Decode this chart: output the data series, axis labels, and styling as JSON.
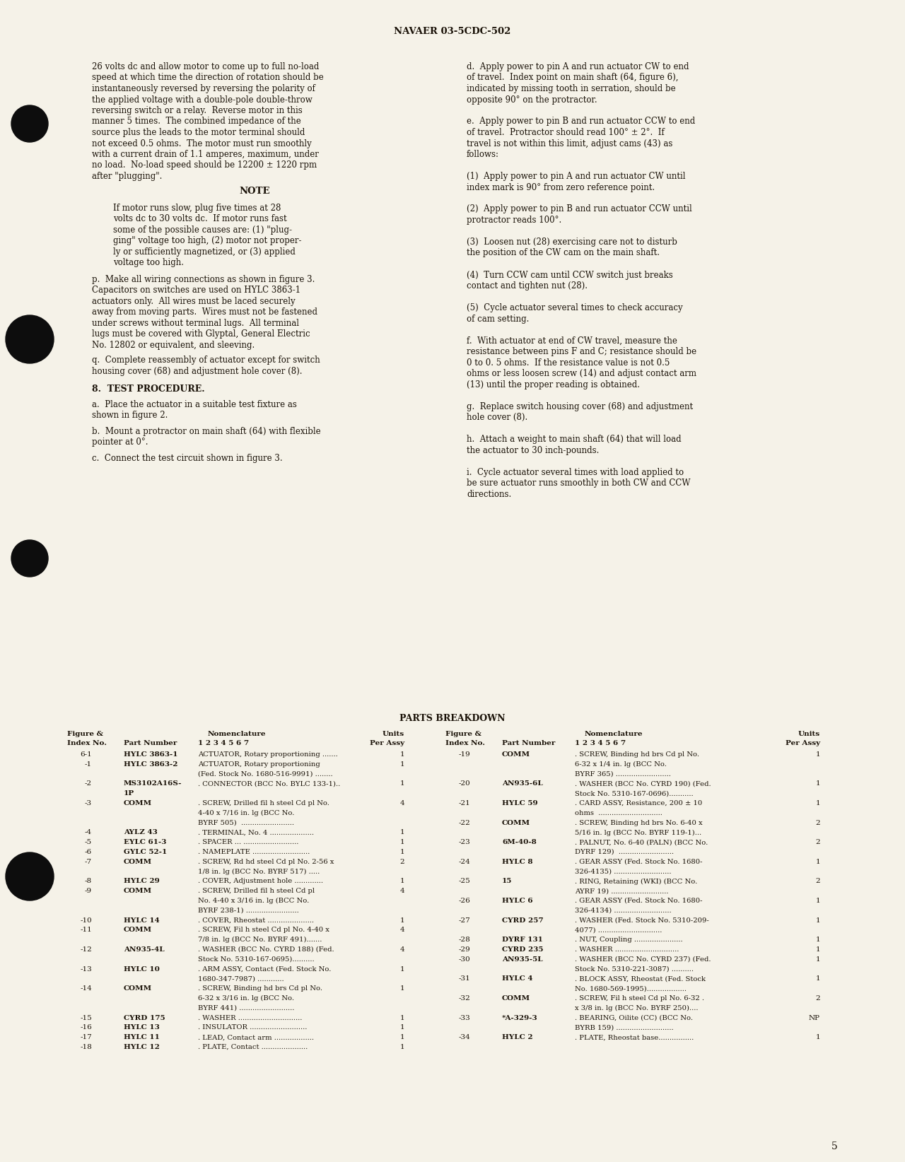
{
  "bg": "#f5f2e8",
  "header": "NAVAER 03-5CDC-502",
  "page_num": "5",
  "left_para": [
    "26 volts dc and allow motor to come up to full no-load",
    "speed at which time the direction of rotation should be",
    "instantaneously reversed by reversing the polarity of",
    "the applied voltage with a double-pole double-throw",
    "reversing switch or a relay.  Reverse motor in this",
    "manner 5 times.  The combined impedance of the",
    "source plus the leads to the motor terminal should",
    "not exceed 0.5 ohms.  The motor must run smoothly",
    "with a current drain of 1.1 amperes, maximum, under",
    "no load.  No-load speed should be 12200 ± 1220 rpm",
    "after \"plugging\"."
  ],
  "note_lines": [
    "If motor runs slow, plug five times at 28",
    "volts dc to 30 volts dc.  If motor runs fast",
    "some of the possible causes are: (1) \"plug-",
    "ging\" voltage too high, (2) motor not proper-",
    "ly or sufficiently magnetized, or (3) applied",
    "voltage too high."
  ],
  "para_p": [
    "p.  Make all wiring connections as shown in figure 3.",
    "Capacitors on switches are used on HYLC 3863-1",
    "actuators only.  All wires must be laced securely",
    "away from moving parts.  Wires must not be fastened",
    "under screws without terminal lugs.  All terminal",
    "lugs must be covered with Glyptal, General Electric",
    "No. 12802 or equivalent, and sleeving."
  ],
  "para_q": [
    "q.  Complete reassembly of actuator except for switch",
    "housing cover (68) and adjustment hole cover (8)."
  ],
  "sec8": "8.  TEST PROCEDURE.",
  "para_a": [
    "a.  Place the actuator in a suitable test fixture as",
    "shown in figure 2."
  ],
  "para_b": [
    "b.  Mount a protractor on main shaft (64) with flexible",
    "pointer at 0°."
  ],
  "para_c": "c.  Connect the test circuit shown in figure 3.",
  "right_para": [
    "d.  Apply power to pin A and run actuator CW to end",
    "of travel.  Index point on main shaft (64, figure 6),",
    "indicated by missing tooth in serration, should be",
    "opposite 90° on the protractor.",
    "",
    "e.  Apply power to pin B and run actuator CCW to end",
    "of travel.  Protractor should read 100° ± 2°.  If",
    "travel is not within this limit, adjust cams (43) as",
    "follows:",
    "",
    "(1)  Apply power to pin A and run actuator CW until",
    "index mark is 90° from zero reference point.",
    "",
    "(2)  Apply power to pin B and run actuator CCW until",
    "protractor reads 100°.",
    "",
    "(3)  Loosen nut (28) exercising care not to disturb",
    "the position of the CW cam on the main shaft.",
    "",
    "(4)  Turn CCW cam until CCW switch just breaks",
    "contact and tighten nut (28).",
    "",
    "(5)  Cycle actuator several times to check accuracy",
    "of cam setting.",
    "",
    "f.  With actuator at end of CW travel, measure the",
    "resistance between pins F and C; resistance should be",
    "0 to 0. 5 ohms.  If the resistance value is not 0.5",
    "ohms or less loosen screw (14) and adjust contact arm",
    "(13) until the proper reading is obtained.",
    "",
    "g.  Replace switch housing cover (68) and adjustment",
    "hole cover (8).",
    "",
    "h.  Attach a weight to main shaft (64) that will load",
    "the actuator to 30 inch-pounds.",
    "",
    "i.  Cycle actuator several times with load applied to",
    "be sure actuator runs smoothly in both CW and CCW",
    "directions."
  ],
  "parts_title": "PARTS BREAKDOWN",
  "parts_left": [
    [
      "6-1",
      "HYLC 3863-1",
      "ACTUATOR, Rotary proportioning .......",
      "1"
    ],
    [
      "-1",
      "HYLC 3863-2",
      "ACTUATOR, Rotary proportioning",
      "1"
    ],
    [
      "",
      "",
      "(Fed. Stock No. 1680-516-9991) ........",
      ""
    ],
    [
      "-2",
      "MS3102A16S-",
      ". CONNECTOR (BCC No. BYLC 133-1)..",
      "1"
    ],
    [
      "",
      "1P",
      "",
      ""
    ],
    [
      "-3",
      "COMM",
      ". SCREW, Drilled fil h steel Cd pl No.",
      "4"
    ],
    [
      "",
      "",
      "4-40 x 7/16 in. lg (BCC No.",
      ""
    ],
    [
      "",
      "",
      "BYRF 505)  ........................",
      ""
    ],
    [
      "-4",
      "AYLZ 43",
      ". TERMINAL, No. 4 ....................",
      "1"
    ],
    [
      "-5",
      "EYLC 61-3",
      ". SPACER ... .........................",
      "1"
    ],
    [
      "-6",
      "GYLC 52-1",
      ". NAMEPLATE ..........................",
      "1"
    ],
    [
      "-7",
      "COMM",
      ". SCREW, Rd hd steel Cd pl No. 2-56 x",
      "2"
    ],
    [
      "",
      "",
      "1/8 in. lg (BCC No. BYRF 517) .....",
      ""
    ],
    [
      "-8",
      "HYLC 29",
      ". COVER, Adjustment hole .............",
      "1"
    ],
    [
      "-9",
      "COMM",
      ". SCREW, Drilled fil h steel Cd pl",
      "4"
    ],
    [
      "",
      "",
      "No. 4-40 x 3/16 in. lg (BCC No.",
      ""
    ],
    [
      "",
      "",
      "BYRF 238-1) ........................",
      ""
    ],
    [
      "-10",
      "HYLC 14",
      ". COVER, Rheostat .....................",
      "1"
    ],
    [
      "-11",
      "COMM",
      ". SCREW, Fil h steel Cd pl No. 4-40 x",
      "4"
    ],
    [
      "",
      "",
      "7/8 in. lg (BCC No. BYRF 491).......",
      ""
    ],
    [
      "-12",
      "AN935-4L",
      ". WASHER (BCC No. CYRD 188) (Fed.",
      "4"
    ],
    [
      "",
      "",
      "Stock No. 5310-167-0695)..........",
      ""
    ],
    [
      "-13",
      "HYLC 10",
      ". ARM ASSY, Contact (Fed. Stock No.",
      "1"
    ],
    [
      "",
      "",
      "1680-347-7987) ............",
      ""
    ],
    [
      "-14",
      "COMM",
      ". SCREW, Binding hd brs Cd pl No.",
      "1"
    ],
    [
      "",
      "",
      "6-32 x 3/16 in. lg (BCC No.",
      ""
    ],
    [
      "",
      "",
      "BYRF 441) .........................",
      ""
    ],
    [
      "-15",
      "CYRD 175",
      ". WASHER .............................",
      "1"
    ],
    [
      "-16",
      "HYLC 13",
      ". INSULATOR ..........................",
      "1"
    ],
    [
      "-17",
      "HYLC 11",
      ". LEAD, Contact arm ..................",
      "1"
    ],
    [
      "-18",
      "HYLC 12",
      ". PLATE, Contact .....................",
      "1"
    ]
  ],
  "parts_right": [
    [
      "-19",
      "COMM",
      ". SCREW, Binding hd brs Cd pl No.",
      "1"
    ],
    [
      "",
      "",
      "6-32 x 1/4 in. lg (BCC No.",
      ""
    ],
    [
      "",
      "",
      "BYRF 365) .........................",
      ""
    ],
    [
      "-20",
      "AN935-6L",
      ". WASHER (BCC No. CYRD 190) (Fed.",
      "1"
    ],
    [
      "",
      "",
      "Stock No. 5310-167-0696)...........",
      ""
    ],
    [
      "-21",
      "HYLC 59",
      ". CARD ASSY, Resistance, 200 ± 10",
      "1"
    ],
    [
      "",
      "",
      "ohms  .............................",
      ""
    ],
    [
      "-22",
      "COMM",
      ". SCREW, Binding hd brs No. 6-40 x",
      "2"
    ],
    [
      "",
      "",
      "5/16 in. lg (BCC No. BYRF 119-1)...",
      ""
    ],
    [
      "-23",
      "6M-40-8",
      ". PALNUT, No. 6-40 (PALN) (BCC No.",
      "2"
    ],
    [
      "",
      "",
      "DYRF 129)  .........................",
      ""
    ],
    [
      "-24",
      "HYLC 8",
      ". GEAR ASSY (Fed. Stock No. 1680-",
      "1"
    ],
    [
      "",
      "",
      "326-4135) ..........................",
      ""
    ],
    [
      "-25",
      "15",
      ". RING, Retaining (WKI) (BCC No.",
      "2"
    ],
    [
      "",
      "",
      "AYRF 19) ..........................",
      ""
    ],
    [
      "-26",
      "HYLC 6",
      ". GEAR ASSY (Fed. Stock No. 1680-",
      "1"
    ],
    [
      "",
      "",
      "326-4134) ..........................",
      ""
    ],
    [
      "-27",
      "CYRD 257",
      ". WASHER (Fed. Stock No. 5310-209-",
      "1"
    ],
    [
      "",
      "",
      "4077) .............................",
      ""
    ],
    [
      "-28",
      "DYRF 131",
      ". NUT, Coupling ......................",
      "1"
    ],
    [
      "-29",
      "CYRD 235",
      ". WASHER .............................",
      "1"
    ],
    [
      "-30",
      "AN935-5L",
      ". WASHER (BCC No. CYRD 237) (Fed.",
      "1"
    ],
    [
      "",
      "",
      "Stock No. 5310-221-3087) ..........",
      ""
    ],
    [
      "-31",
      "HYLC 4",
      ". BLOCK ASSY, Rheostat (Fed. Stock",
      "1"
    ],
    [
      "",
      "",
      "No. 1680-569-1995)..................",
      ""
    ],
    [
      "-32",
      "COMM",
      ". SCREW, Fil h steel Cd pl No. 6-32 .",
      "2"
    ],
    [
      "",
      "",
      "x 3/8 in. lg (BCC No. BYRF 250)....",
      ""
    ],
    [
      "-33",
      "*A-329-3",
      ". BEARING, Oilite (CC) (BCC No.",
      "NP"
    ],
    [
      "",
      "",
      "BYRB 159) ..........................",
      ""
    ],
    [
      "-34",
      "HYLC 2",
      ". PLATE, Rheostat base................",
      "1"
    ]
  ]
}
